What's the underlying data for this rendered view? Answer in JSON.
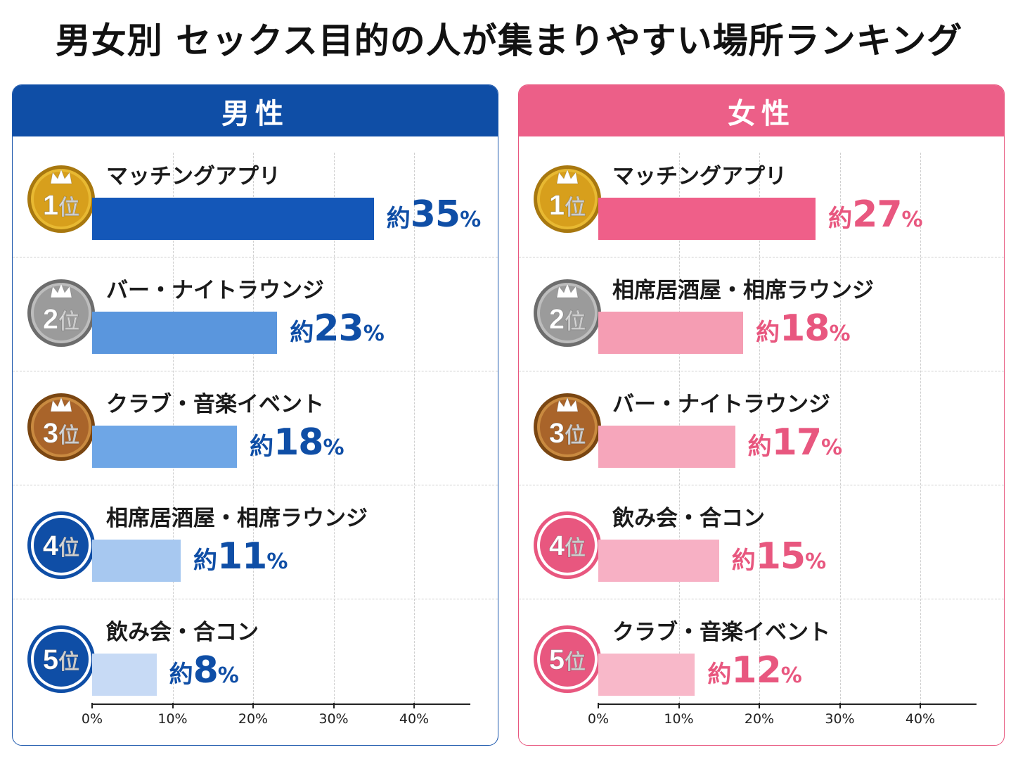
{
  "title": "男女別 セックス目的の人が集まりやすい場所ランキング",
  "panels": [
    {
      "header": "男性",
      "rank_suffix": "位",
      "value_prefix": "約",
      "value_suffix": "%"
    },
    {
      "header": "女性",
      "rank_suffix": "位",
      "value_prefix": "約",
      "value_suffix": "%"
    }
  ],
  "colors": {
    "male_header": "#0f4ea6",
    "female_header": "#ec5f88",
    "male_bars": [
      "#1457b8",
      "#5a96dd",
      "#6ea6e6",
      "#a7c8f0",
      "#c7daf5"
    ],
    "female_bars": [
      "#ef5f89",
      "#f59db3",
      "#f6a6bb",
      "#f7b0c4",
      "#f8b8c9"
    ],
    "gold": "#d9a520",
    "silver": "#9a9a9a",
    "bronze": "#b8702a",
    "male_badge": "#0f4ea6",
    "female_badge": "#e8577f"
  },
  "chart_data": [
    {
      "type": "bar",
      "orientation": "horizontal",
      "title": "男性",
      "categories": [
        "マッチングアプリ",
        "バー・ナイトラウンジ",
        "クラブ・音楽イベント",
        "相席居酒屋・相席ラウンジ",
        "飲み会・合コン"
      ],
      "ranks": [
        1,
        2,
        3,
        4,
        5
      ],
      "values": [
        35,
        23,
        18,
        11,
        8
      ],
      "xlim": [
        0,
        45
      ],
      "x_ticks": [
        "0%",
        "10%",
        "20%",
        "30%",
        "40%"
      ],
      "grid": true
    },
    {
      "type": "bar",
      "orientation": "horizontal",
      "title": "女性",
      "categories": [
        "マッチングアプリ",
        "相席居酒屋・相席ラウンジ",
        "バー・ナイトラウンジ",
        "飲み会・合コン",
        "クラブ・音楽イベント"
      ],
      "ranks": [
        1,
        2,
        3,
        4,
        5
      ],
      "values": [
        27,
        18,
        17,
        15,
        12
      ],
      "xlim": [
        0,
        45
      ],
      "x_ticks": [
        "0%",
        "10%",
        "20%",
        "30%",
        "40%"
      ],
      "grid": true
    }
  ]
}
